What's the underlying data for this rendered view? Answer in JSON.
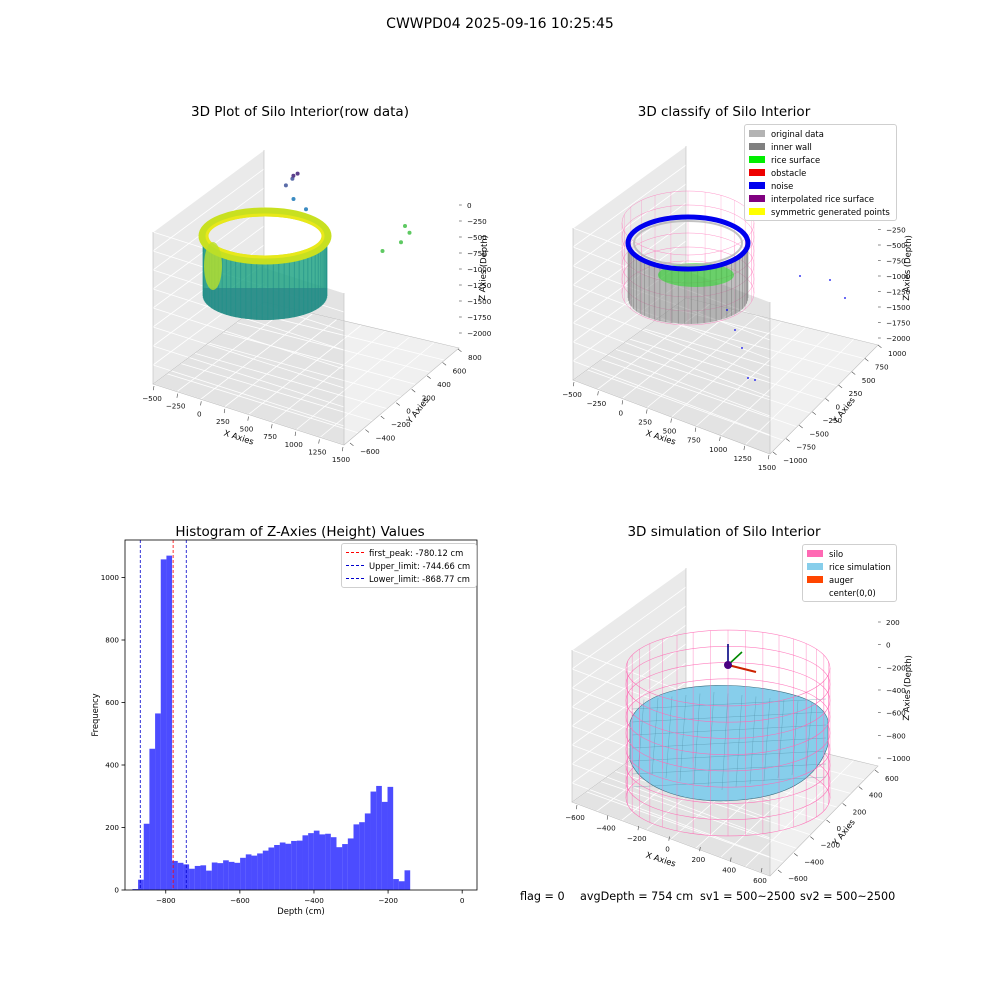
{
  "suptitle": "CWWPD04 2025-09-16 10:25:45",
  "chart_data": [
    {
      "type": "scatter",
      "title": "3D Plot of Silo Interior(row data)",
      "xlabel": "X Axies",
      "ylabel": "Y Axies",
      "zlabel": "Z Axies (Depth)",
      "x_ticks": [
        "−500",
        "−250",
        "0",
        "250",
        "500",
        "750",
        "1000",
        "1250",
        "1500"
      ],
      "y_ticks": [
        "−600",
        "−400",
        "−200",
        "0",
        "200",
        "400",
        "600",
        "800"
      ],
      "z_ticks": [
        "0",
        "−250",
        "−500",
        "−750",
        "−1000",
        "−1250",
        "−1500",
        "−1750",
        "−2000"
      ],
      "colormap": "viridis",
      "outlier_points": [
        {
          "x": 1300,
          "y": 250,
          "z": -900
        },
        {
          "x": 1400,
          "y": 500,
          "z": -950
        },
        {
          "x": 1450,
          "y": 600,
          "z": -1050
        },
        {
          "x": 1420,
          "y": 560,
          "z": -1150
        },
        {
          "x": 700,
          "y": -100,
          "z": -1550
        },
        {
          "x": 600,
          "y": -150,
          "z": -1700
        },
        {
          "x": 550,
          "y": -220,
          "z": -1900
        },
        {
          "x": 620,
          "y": -260,
          "z": -2000
        },
        {
          "x": 640,
          "y": -300,
          "z": -2050
        },
        {
          "x": 700,
          "y": -380,
          "z": -2100
        }
      ]
    },
    {
      "type": "scatter",
      "title": "3D classify of Silo Interior",
      "xlabel": "X Axies",
      "ylabel": "Y Axies",
      "zlabel": "Z Axies (Depth)",
      "x_ticks": [
        "−500",
        "−250",
        "0",
        "250",
        "500",
        "750",
        "1000",
        "1250",
        "1500"
      ],
      "y_ticks": [
        "−1000",
        "−750",
        "−500",
        "−250",
        "0",
        "250",
        "500",
        "750",
        "1000"
      ],
      "z_ticks": [
        "0",
        "−250",
        "−500",
        "−750",
        "−1000",
        "−1250",
        "−1500",
        "−1750",
        "−2000"
      ],
      "legend": [
        {
          "label": "original data",
          "color": "#b3b3b3"
        },
        {
          "label": "inner wall",
          "color": "#808080"
        },
        {
          "label": "rice surface",
          "color": "#00ee00"
        },
        {
          "label": "obstacle",
          "color": "#ee0000"
        },
        {
          "label": "noise",
          "color": "#0000ee"
        },
        {
          "label": "interpolated rice surface",
          "color": "#800080"
        },
        {
          "label": "symmetric generated points",
          "color": "#ffff00"
        }
      ]
    },
    {
      "type": "bar",
      "title": "Histogram of Z-Axies (Height) Values",
      "xlabel": "Depth (cm)",
      "ylabel": "Frequency",
      "xlim": [
        -910,
        40
      ],
      "ylim": [
        0,
        1120
      ],
      "x_ticks": [
        -800,
        -600,
        -400,
        -200,
        0
      ],
      "y_ticks": [
        0,
        200,
        400,
        600,
        800,
        1000
      ],
      "bin_start": -890,
      "bin_width": 15.3,
      "values": [
        3,
        33,
        212,
        452,
        565,
        1058,
        1070,
        93,
        87,
        82,
        68,
        77,
        79,
        62,
        88,
        86,
        95,
        90,
        87,
        103,
        114,
        110,
        117,
        126,
        136,
        144,
        152,
        148,
        157,
        158,
        175,
        182,
        190,
        178,
        180,
        169,
        137,
        147,
        165,
        210,
        217,
        245,
        315,
        333,
        282,
        330,
        35,
        28,
        63
      ],
      "color": "#0000ff",
      "lines": [
        {
          "label": "first_peak: -780.12 cm",
          "x": -780.12,
          "color": "#ff0000"
        },
        {
          "label": "Upper_limit: -744.66 cm",
          "x": -744.66,
          "color": "#0000cc"
        },
        {
          "label": "Lower_limit: -868.77 cm",
          "x": -868.77,
          "color": "#0000cc"
        }
      ]
    },
    {
      "type": "scatter",
      "title": "3D simulation of Silo Interior",
      "xlabel": "X Axies",
      "ylabel": "Y Axies",
      "zlabel": "Z Axies (Depth)",
      "x_ticks": [
        "−600",
        "−400",
        "−200",
        "0",
        "200",
        "400",
        "600"
      ],
      "y_ticks": [
        "−600",
        "−400",
        "−200",
        "0",
        "200",
        "400",
        "600"
      ],
      "z_ticks": [
        "200",
        "0",
        "−200",
        "−400",
        "−600",
        "−800",
        "−1000"
      ],
      "legend": [
        {
          "label": "silo",
          "color": "#ff69b4"
        },
        {
          "label": "rice simulation",
          "color": "#87ceeb"
        },
        {
          "label": "auger",
          "color": "#ff4500"
        },
        {
          "label": "center(0,0)",
          "color": "#ffffff"
        }
      ]
    }
  ],
  "footer": {
    "flag": "flag = 0",
    "avg_depth": "avgDepth = 754 cm",
    "sv1": "sv1 = 500~2500",
    "sv2": "sv2 = 500~2500"
  }
}
